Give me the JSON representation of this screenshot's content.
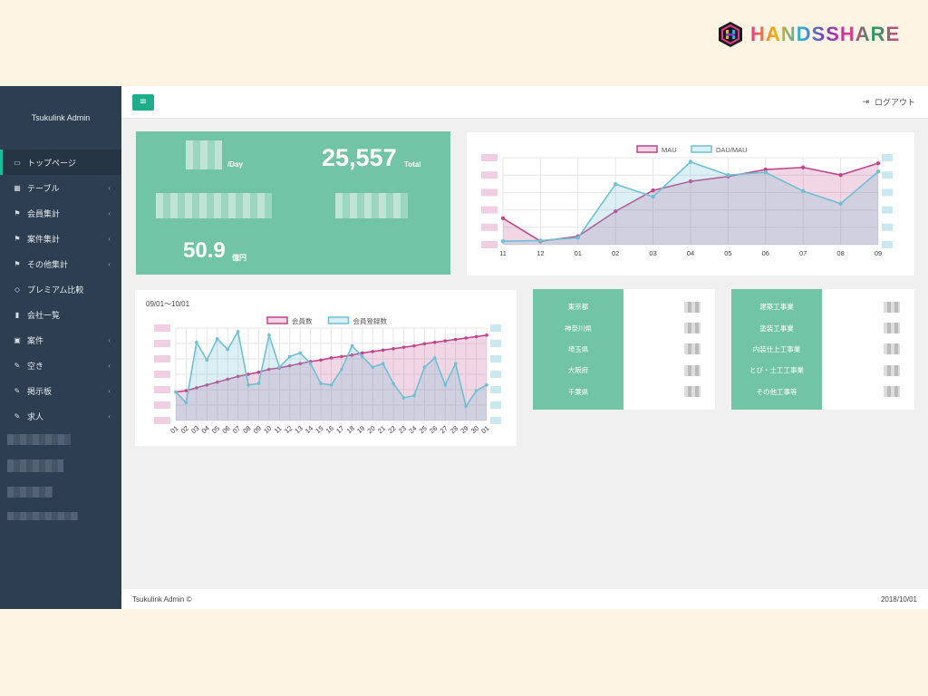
{
  "logo": {
    "text": "HANDSSHARE"
  },
  "sidebar": {
    "brand": "Tsukulink Admin",
    "items": [
      {
        "label": "トップページ",
        "icon": "laptop-icon",
        "active": true,
        "chevron": false
      },
      {
        "label": "テーブル",
        "icon": "table-icon",
        "active": false,
        "chevron": true
      },
      {
        "label": "会員集計",
        "icon": "flag-icon",
        "active": false,
        "chevron": true
      },
      {
        "label": "案件集計",
        "icon": "flag-icon",
        "active": false,
        "chevron": true
      },
      {
        "label": "その他集計",
        "icon": "flag-icon",
        "active": false,
        "chevron": true
      },
      {
        "label": "プレミアム比較",
        "icon": "diamond-icon",
        "active": false,
        "chevron": false
      },
      {
        "label": "会社一覧",
        "icon": "building-icon",
        "active": false,
        "chevron": false
      },
      {
        "label": "案件",
        "icon": "briefcase-icon",
        "active": false,
        "chevron": true
      },
      {
        "label": "空き",
        "icon": "edit-icon",
        "active": false,
        "chevron": true
      },
      {
        "label": "掲示板",
        "icon": "edit-icon",
        "active": false,
        "chevron": true
      },
      {
        "label": "求人",
        "icon": "edit-icon",
        "active": false,
        "chevron": true
      }
    ]
  },
  "topbar": {
    "menu_icon": "≡",
    "logout": "ログアウト"
  },
  "stats": {
    "per_day_unit": "/Day",
    "total_value": "25,557",
    "total_unit": "Total",
    "amount_value": "50.9",
    "amount_unit": "億円"
  },
  "footer": {
    "left": "Tsukulink Admin ©",
    "right": "2018/10/01"
  },
  "members_panel": {
    "range": "09/01〜10/01"
  },
  "prefectures": [
    "東京都",
    "神奈川県",
    "埼玉県",
    "大阪府",
    "千葉県"
  ],
  "industries": [
    "建築工事業",
    "塗装工事業",
    "内装仕上工事業",
    "とび・土工工事業",
    "その他工事等"
  ],
  "colors": {
    "accent": "#1fae8a",
    "panel": "#72c4a6",
    "sidebar": "#2c3e50",
    "magenta": "#c0458c",
    "cyan": "#6ec1d2"
  },
  "chart_data": [
    {
      "type": "line",
      "title": "",
      "x": [
        "11",
        "12",
        "01",
        "02",
        "03",
        "04",
        "05",
        "06",
        "07",
        "08",
        "09"
      ],
      "series": [
        {
          "name": "MAU",
          "values": [
            0.38,
            0.05,
            0.12,
            0.48,
            0.78,
            0.91,
            0.98,
            1.08,
            1.11,
            1.0,
            1.17
          ]
        },
        {
          "name": "DAU/MAU",
          "values": [
            0.05,
            0.06,
            0.1,
            0.87,
            0.69,
            1.19,
            1.0,
            1.04,
            0.77,
            0.59,
            1.05
          ]
        }
      ],
      "legend": "top"
    },
    {
      "type": "line",
      "title": "",
      "x": [
        "01",
        "02",
        "03",
        "04",
        "05",
        "06",
        "07",
        "08",
        "09",
        "10",
        "11",
        "12",
        "13",
        "14",
        "15",
        "16",
        "17",
        "18",
        "19",
        "20",
        "21",
        "22",
        "23",
        "24",
        "25",
        "26",
        "27",
        "28",
        "29",
        "30",
        "01"
      ],
      "series": [
        {
          "name": "会員数",
          "values": [
            40,
            42,
            46,
            50,
            54,
            58,
            62,
            65,
            68,
            72,
            74,
            77,
            80,
            83,
            85,
            88,
            90,
            92,
            95,
            97,
            99,
            101,
            103,
            105,
            108,
            110,
            112,
            114,
            116,
            118,
            120
          ]
        },
        {
          "name": "会員登録数",
          "values": [
            40,
            25,
            110,
            85,
            115,
            100,
            125,
            50,
            52,
            120,
            75,
            90,
            95,
            80,
            52,
            50,
            72,
            105,
            90,
            75,
            80,
            52,
            32,
            35,
            75,
            88,
            50,
            80,
            20,
            42,
            50
          ]
        }
      ],
      "legend": "top"
    }
  ]
}
